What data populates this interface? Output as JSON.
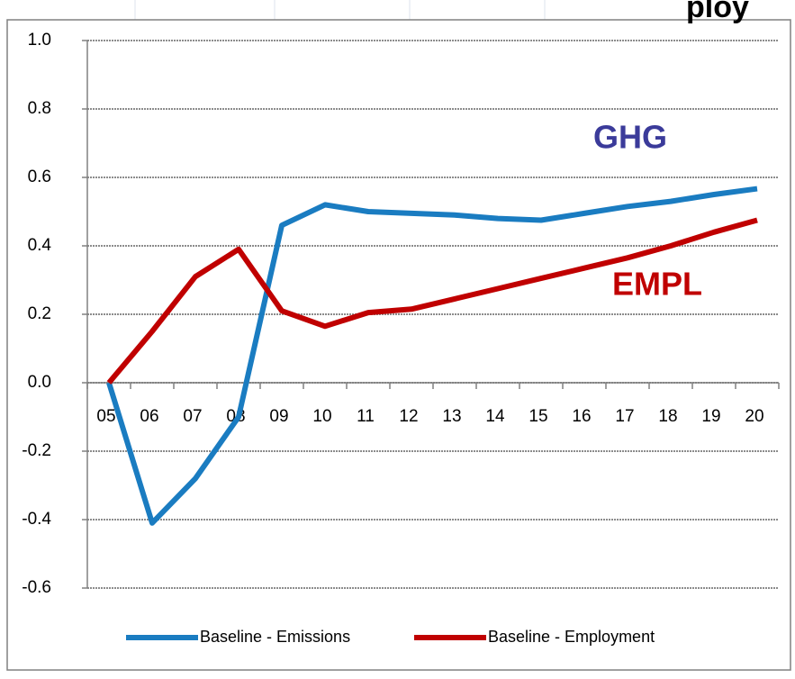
{
  "chart_data": {
    "type": "line",
    "title": "ploy",
    "categories": [
      "05",
      "06",
      "07",
      "08",
      "09",
      "10",
      "11",
      "12",
      "13",
      "14",
      "15",
      "16",
      "17",
      "18",
      "19",
      "20"
    ],
    "series": [
      {
        "name": "Baseline  - Emissions",
        "color": "#1a7cc1",
        "values": [
          0,
          -0.41,
          -0.28,
          -0.1,
          0.46,
          0.52,
          0.5,
          0.495,
          0.49,
          0.48,
          0.475,
          0.495,
          0.515,
          0.53,
          0.55,
          0.567
        ]
      },
      {
        "name": "Baseline  - Employment",
        "color": "#c00000",
        "values": [
          0,
          0.15,
          0.31,
          0.39,
          0.21,
          0.165,
          0.205,
          0.215,
          0.245,
          0.275,
          0.305,
          0.335,
          0.365,
          0.4,
          0.44,
          0.475
        ]
      }
    ],
    "annotations": [
      {
        "text": "GHG",
        "color": "#3b3b9a"
      },
      {
        "text": "EMPL",
        "color": "#c00000"
      }
    ],
    "ylim": [
      -0.6,
      1.0
    ],
    "yticks": [
      {
        "value": 1.0,
        "label": "1.0"
      },
      0.8,
      0.6,
      0.4,
      0.2,
      {
        "value": 0.0,
        "label": "0.0"
      },
      -0.2,
      -0.4,
      -0.6
    ],
    "grid": true,
    "legend": "bottom"
  }
}
